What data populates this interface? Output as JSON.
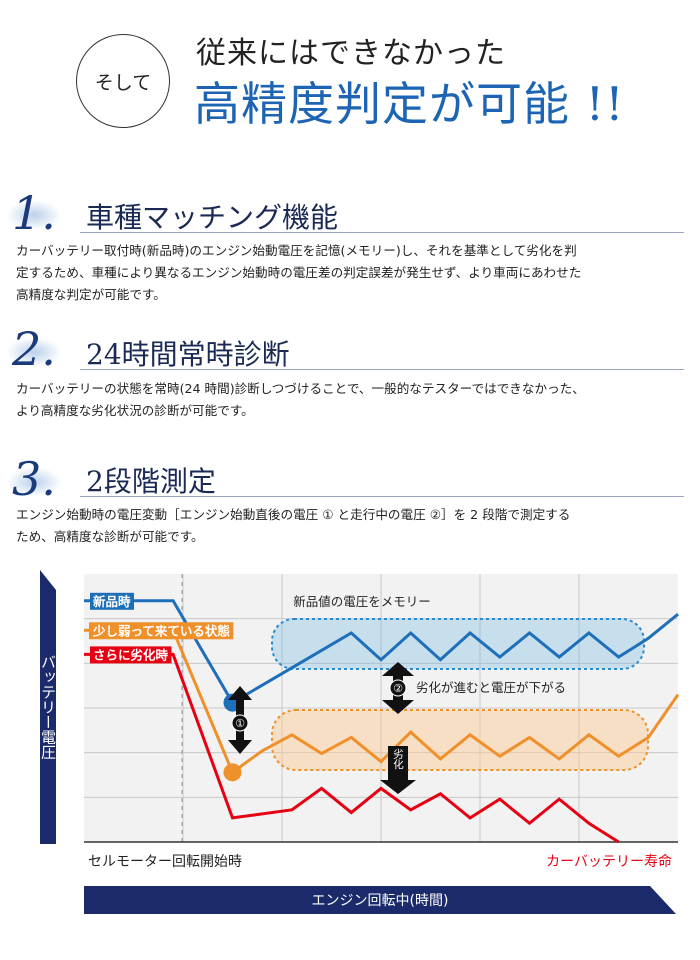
{
  "header": {
    "circle_label": "そして",
    "line1": "従来にはできなかった",
    "line2": "高精度判定が可能 !!"
  },
  "sections": [
    {
      "number": "1.",
      "title": "車種マッチング機能",
      "body_lines": [
        "カーバッテリー取付時(新品時)のエンジン始動電圧を記憶(メモリー)し、それを基準として劣化を判",
        "定するため、車種により異なるエンジン始動時の電圧差の判定誤差が発生せず、より車両にあわせた",
        "高精度な判定が可能です。"
      ]
    },
    {
      "number": "2.",
      "title": "24時間常時診断",
      "body_lines": [
        "カーバッテリーの状態を常時(24 時間)診断しつづけることで、一般的なテスターではできなかった、",
        "より高精度な劣化状況の診断が可能です。"
      ]
    },
    {
      "number": "3.",
      "title": "2段階測定",
      "body_lines": [
        "エンジン始動時の電圧変動［エンジン始動直後の電圧 ① と走行中の電圧 ②］を 2 段階で測定する",
        "ため、高精度な診断が可能です。"
      ]
    }
  ],
  "chart_data": {
    "type": "line",
    "title": "",
    "ylabel": "バッテリー電圧",
    "xlabel": "エンジン回転中(時間)",
    "x_start_label": "セルモーター回転開始時",
    "x_end_label": "カーバッテリー寿命",
    "grid": true,
    "ylim": [
      0,
      10
    ],
    "xlim": [
      0,
      20
    ],
    "series": [
      {
        "name": "新品時",
        "color": "#1e6fba",
        "x": [
          0,
          3,
          5,
          7,
          9,
          10,
          11,
          12,
          13,
          14,
          15,
          16,
          17,
          18,
          19,
          20
        ],
        "y": [
          9.0,
          9.0,
          5.2,
          6.5,
          7.8,
          6.8,
          7.8,
          6.8,
          7.8,
          6.9,
          7.8,
          6.9,
          7.8,
          6.9,
          7.6,
          8.5
        ]
      },
      {
        "name": "少し弱って来ている状態",
        "color": "#f0902a",
        "x": [
          0,
          3,
          5,
          6,
          7,
          8,
          9,
          10,
          11,
          12,
          13,
          14,
          15,
          16,
          17,
          18,
          19,
          20
        ],
        "y": [
          7.9,
          7.9,
          2.6,
          3.4,
          4.0,
          3.3,
          3.9,
          3.0,
          4.1,
          3.1,
          4.0,
          3.2,
          3.9,
          3.1,
          4.0,
          3.2,
          3.9,
          5.5
        ]
      },
      {
        "name": "さらに劣化時",
        "color": "#e60012",
        "x": [
          0,
          3,
          5,
          7,
          8,
          9,
          10,
          11,
          12,
          13,
          14,
          15,
          16,
          17,
          18
        ],
        "y": [
          7.0,
          7.0,
          0.9,
          1.2,
          2.0,
          1.1,
          2.0,
          1.2,
          1.8,
          0.9,
          1.6,
          0.7,
          1.6,
          0.7,
          0.0
        ]
      }
    ],
    "memory_label": "新品値の電圧をメモリー",
    "point1_label": "①",
    "point2_label": "②",
    "drop_label": "劣化が進むと電圧が下がる",
    "degrade_label": "劣化",
    "colors": {
      "axis_bar": "#1b2a6b",
      "panel": "#f2f2f2",
      "grid": "#c8c8c8"
    }
  }
}
